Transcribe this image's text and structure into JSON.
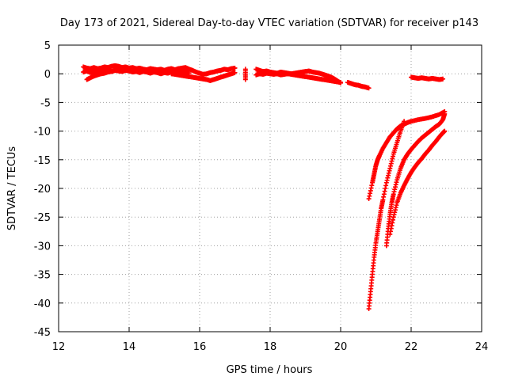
{
  "chart_data": {
    "type": "scatter",
    "title": "Day 173 of 2021, Sidereal Day-to-day VTEC variation (SDTVAR) for receiver p143",
    "xlabel": "GPS time / hours",
    "ylabel": "SDTVAR / TECUs",
    "xlim": [
      12,
      24
    ],
    "ylim": [
      -45,
      5
    ],
    "xticks": [
      12,
      14,
      16,
      18,
      20,
      22,
      24
    ],
    "yticks": [
      5,
      0,
      -5,
      -10,
      -15,
      -20,
      -25,
      -30,
      -35,
      -40,
      -45
    ],
    "grid": true,
    "marker": "plus",
    "color": "#ff0000",
    "tracks": [
      {
        "name": "",
        "x": [
          12.7,
          12.8,
          12.9,
          13.0,
          13.1,
          13.2,
          13.3,
          13.4,
          13.5,
          13.6,
          13.7,
          13.8,
          13.9,
          14.0,
          14.1,
          14.2,
          14.3,
          14.4,
          14.5,
          14.6,
          14.7,
          14.8,
          14.9,
          15.0,
          15.1,
          15.2,
          15.3,
          15.4,
          15.5,
          15.6,
          15.7,
          15.8,
          15.9,
          16.0,
          16.1,
          16.2,
          16.3,
          16.4,
          16.5,
          16.6,
          16.7,
          16.8,
          16.9,
          17.0
        ],
        "y": [
          1.2,
          1.0,
          0.9,
          1.1,
          0.9,
          1.0,
          1.2,
          1.1,
          1.3,
          1.4,
          1.3,
          1.1,
          1.2,
          1.0,
          1.1,
          0.9,
          1.0,
          0.8,
          0.7,
          0.9,
          0.8,
          0.7,
          0.8,
          0.6,
          0.8,
          0.9,
          0.7,
          0.9,
          1.0,
          1.1,
          0.8,
          0.6,
          0.3,
          0.1,
          -0.1,
          0.0,
          0.2,
          0.3,
          0.5,
          0.6,
          0.8,
          0.7,
          0.9,
          1.0
        ]
      },
      {
        "name": "",
        "x": [
          12.7,
          12.8,
          12.9,
          13.0,
          13.1,
          13.2,
          13.3,
          13.4,
          13.5,
          13.6,
          13.7,
          13.8,
          13.9,
          14.0,
          14.1,
          14.2,
          14.3,
          14.4,
          14.5,
          14.6,
          14.7,
          14.8,
          14.9,
          15.0,
          15.1,
          15.2,
          15.3,
          15.4,
          15.5,
          15.6,
          15.7
        ],
        "y": [
          0.3,
          0.5,
          0.2,
          0.4,
          0.6,
          0.3,
          0.5,
          0.7,
          0.4,
          0.6,
          0.5,
          0.4,
          0.6,
          0.5,
          0.3,
          0.4,
          0.2,
          0.4,
          0.3,
          0.1,
          0.3,
          0.2,
          0.0,
          0.2,
          0.1,
          0.3,
          0.4,
          0.2,
          0.5,
          0.3,
          0.1
        ]
      },
      {
        "name": "",
        "x": [
          12.8,
          12.9,
          13.0,
          13.1,
          13.2,
          13.3,
          13.4,
          13.5,
          13.6
        ],
        "y": [
          -1.0,
          -0.7,
          -0.4,
          -0.2,
          0.0,
          0.1,
          0.3,
          0.4,
          0.6
        ]
      },
      {
        "name": "",
        "x": [
          15.2,
          15.3,
          15.4,
          15.5,
          15.6,
          15.7,
          15.8,
          15.9,
          16.0,
          16.1,
          16.2,
          16.3,
          16.4,
          16.5,
          16.6,
          16.7,
          16.8,
          16.9,
          17.0
        ],
        "y": [
          0.0,
          -0.1,
          -0.2,
          -0.3,
          -0.4,
          -0.5,
          -0.6,
          -0.7,
          -0.8,
          -0.9,
          -1.0,
          -1.2,
          -1.0,
          -0.8,
          -0.6,
          -0.4,
          -0.2,
          0.0,
          0.2
        ]
      },
      {
        "name": "",
        "x": [
          17.3,
          17.3
        ],
        "y": [
          0.8,
          -1.0
        ]
      },
      {
        "name": "",
        "x": [
          17.6,
          17.7,
          17.8,
          17.9,
          18.0,
          18.1,
          18.2,
          18.3,
          18.4,
          18.5,
          18.6,
          18.7,
          18.8,
          18.9,
          19.0,
          19.1,
          19.2,
          19.3,
          19.4,
          19.5,
          19.6,
          19.7,
          19.8,
          19.9,
          20.0
        ],
        "y": [
          0.8,
          0.6,
          0.4,
          0.5,
          0.3,
          0.2,
          0.1,
          0.3,
          0.2,
          0.1,
          0.0,
          0.1,
          0.2,
          0.3,
          0.4,
          0.5,
          0.3,
          0.2,
          0.1,
          -0.1,
          -0.3,
          -0.5,
          -0.8,
          -1.2,
          -1.6
        ]
      },
      {
        "name": "",
        "x": [
          17.6,
          17.7,
          17.8,
          17.9,
          18.0,
          18.1,
          18.2,
          18.3,
          18.4,
          18.5,
          18.6,
          18.7,
          18.8,
          18.9,
          19.0,
          19.1,
          19.2,
          19.3,
          19.4,
          19.5,
          19.6,
          19.7,
          19.8,
          19.9,
          20.0
        ],
        "y": [
          -0.2,
          0.0,
          -0.1,
          0.1,
          0.0,
          -0.1,
          0.0,
          -0.2,
          -0.1,
          0.0,
          -0.1,
          -0.2,
          -0.3,
          -0.4,
          -0.5,
          -0.6,
          -0.7,
          -0.8,
          -0.9,
          -1.0,
          -1.1,
          -1.2,
          -1.3,
          -1.4,
          -1.5
        ]
      },
      {
        "name": "",
        "x": [
          20.2,
          20.3,
          20.4,
          20.5,
          20.6,
          20.7,
          20.8
        ],
        "y": [
          -1.5,
          -1.7,
          -1.9,
          -2.0,
          -2.2,
          -2.3,
          -2.5
        ]
      },
      {
        "name": "",
        "x": [
          22.0,
          22.1,
          22.2,
          22.3,
          22.4,
          22.5,
          22.6,
          22.7,
          22.8,
          22.9
        ],
        "y": [
          -0.6,
          -0.7,
          -0.8,
          -0.7,
          -0.8,
          -0.9,
          -0.8,
          -0.9,
          -1.0,
          -0.9
        ]
      },
      {
        "name": "",
        "x": [
          20.8,
          20.9,
          20.95,
          21.0,
          21.05,
          21.1,
          21.2,
          21.3,
          21.4,
          21.5,
          21.6,
          21.7,
          21.8,
          21.9,
          22.0,
          22.2,
          22.4,
          22.6,
          22.8,
          22.95
        ],
        "y": [
          -21.8,
          -19.0,
          -17.5,
          -16.0,
          -15.0,
          -14.3,
          -13.0,
          -12.0,
          -11.0,
          -10.3,
          -9.6,
          -9.1,
          -8.8,
          -8.5,
          -8.3,
          -8.0,
          -7.8,
          -7.5,
          -7.1,
          -6.6
        ]
      },
      {
        "name": "",
        "x": [
          20.8,
          20.85,
          20.9,
          20.95,
          21.0,
          21.05,
          21.1,
          21.15,
          21.2,
          21.3,
          21.4,
          21.5,
          21.6,
          21.7,
          21.8
        ],
        "y": [
          -41.0,
          -38.0,
          -35.0,
          -32.0,
          -29.5,
          -27.5,
          -25.5,
          -23.5,
          -22.0,
          -19.0,
          -16.5,
          -14.0,
          -12.0,
          -10.0,
          -8.3
        ]
      },
      {
        "name": "",
        "x": [
          21.3,
          21.35,
          21.4,
          21.45,
          21.5,
          21.6,
          21.7,
          21.8,
          21.9,
          22.0,
          22.1,
          22.2,
          22.3,
          22.4,
          22.5,
          22.6,
          22.7,
          22.8,
          22.9,
          22.95
        ],
        "y": [
          -30.0,
          -27.0,
          -24.5,
          -22.5,
          -21.0,
          -18.5,
          -16.5,
          -15.0,
          -14.0,
          -13.2,
          -12.5,
          -11.8,
          -11.2,
          -10.7,
          -10.2,
          -9.7,
          -9.2,
          -8.8,
          -8.0,
          -7.0
        ]
      },
      {
        "name": "",
        "x": [
          21.4,
          21.5,
          21.6,
          21.7,
          21.8,
          21.9,
          22.0,
          22.1,
          22.2,
          22.3,
          22.4,
          22.5,
          22.6,
          22.7,
          22.8,
          22.9,
          22.95
        ],
        "y": [
          -28.0,
          -25.0,
          -22.5,
          -20.8,
          -19.5,
          -18.3,
          -17.2,
          -16.3,
          -15.5,
          -14.8,
          -14.0,
          -13.3,
          -12.5,
          -11.8,
          -11.0,
          -10.3,
          -10.0
        ]
      }
    ]
  }
}
